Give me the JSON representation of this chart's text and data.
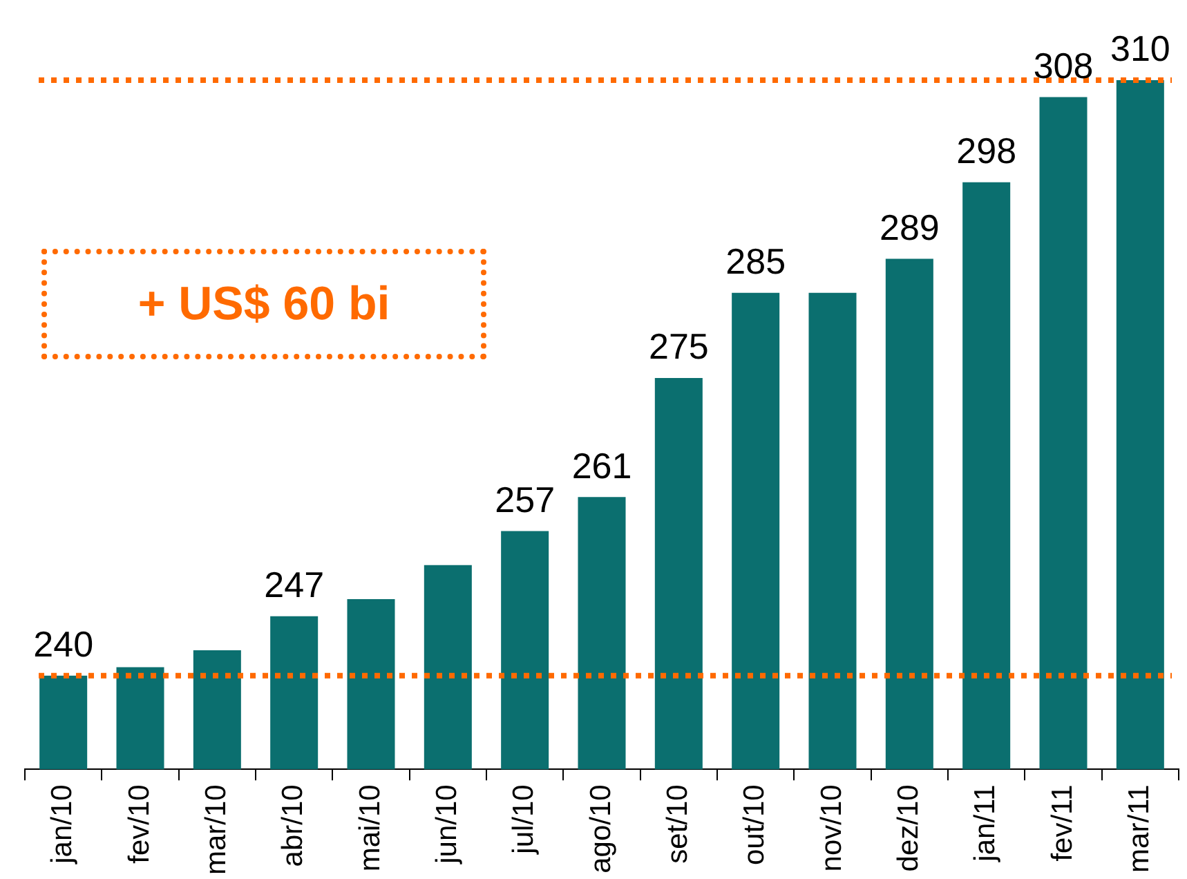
{
  "chart_data": {
    "type": "bar",
    "categories": [
      "jan/10",
      "fev/10",
      "mar/10",
      "abr/10",
      "mai/10",
      "jun/10",
      "jul/10",
      "ago/10",
      "set/10",
      "out/10",
      "nov/10",
      "dez/10",
      "jan/11",
      "fev/11",
      "mar/11"
    ],
    "values": [
      240,
      241,
      243,
      247,
      249,
      253,
      257,
      261,
      275,
      285,
      285,
      289,
      298,
      308,
      310
    ],
    "value_labels": [
      "240",
      null,
      null,
      "247",
      null,
      null,
      "257",
      "261",
      "275",
      "285",
      null,
      "289",
      "298",
      "308",
      "310"
    ],
    "color": "#0b6f6f",
    "ylim": [
      229,
      310
    ],
    "tick_labels": "x",
    "ref_lines": [
      {
        "axis": "y",
        "value": 240,
        "color": "#ff6a00",
        "line_style": "dotted"
      },
      {
        "axis": "y",
        "value": 310,
        "color": "#ff6a00",
        "line_style": "dotted"
      }
    ],
    "annotations": [
      "+ US$ 60 bi"
    ]
  }
}
